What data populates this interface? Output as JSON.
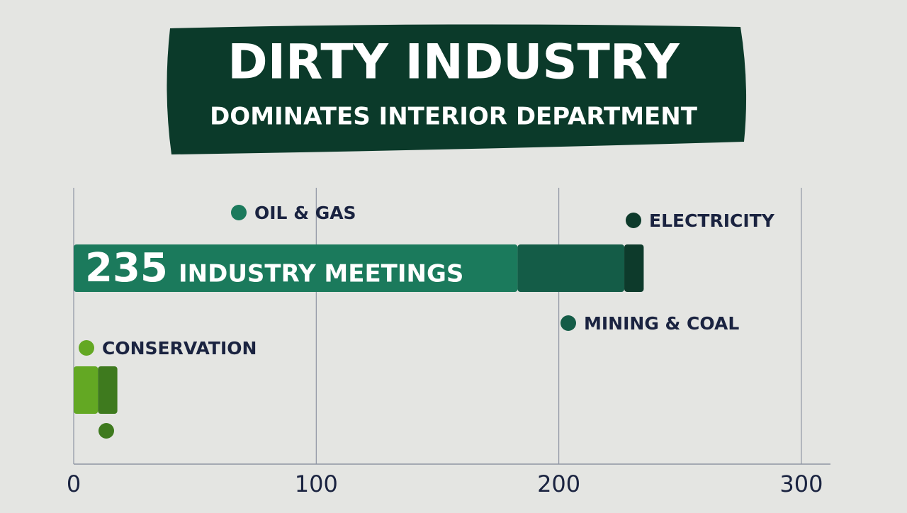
{
  "chart_data": {
    "type": "bar",
    "orientation": "horizontal",
    "stacked": true,
    "title": "DIRTY INDUSTRY",
    "subtitle": "DOMINATES INTERIOR DEPARTMENT",
    "categories": [
      null,
      null
    ],
    "series": [
      {
        "name": "OIL & GAS",
        "color": "#1b7a5c",
        "values": [
          183,
          null
        ]
      },
      {
        "name": "MINING & COAL",
        "color": "#145c47",
        "values": [
          44,
          null
        ]
      },
      {
        "name": "ELECTRICITY",
        "color": "#0d3a2b",
        "values": [
          8,
          null
        ]
      },
      {
        "name": "CONSERVATION",
        "color": "#63a823",
        "values": [
          null,
          10
        ]
      },
      {
        "color": "#3e7a1e",
        "values": [
          null,
          8
        ]
      }
    ],
    "annotations": [
      {
        "value": 235,
        "text": "INDUSTRY MEETINGS"
      }
    ],
    "xlim": [
      0,
      312
    ],
    "xticks": [
      0,
      100,
      200,
      300
    ],
    "grid": true
  }
}
